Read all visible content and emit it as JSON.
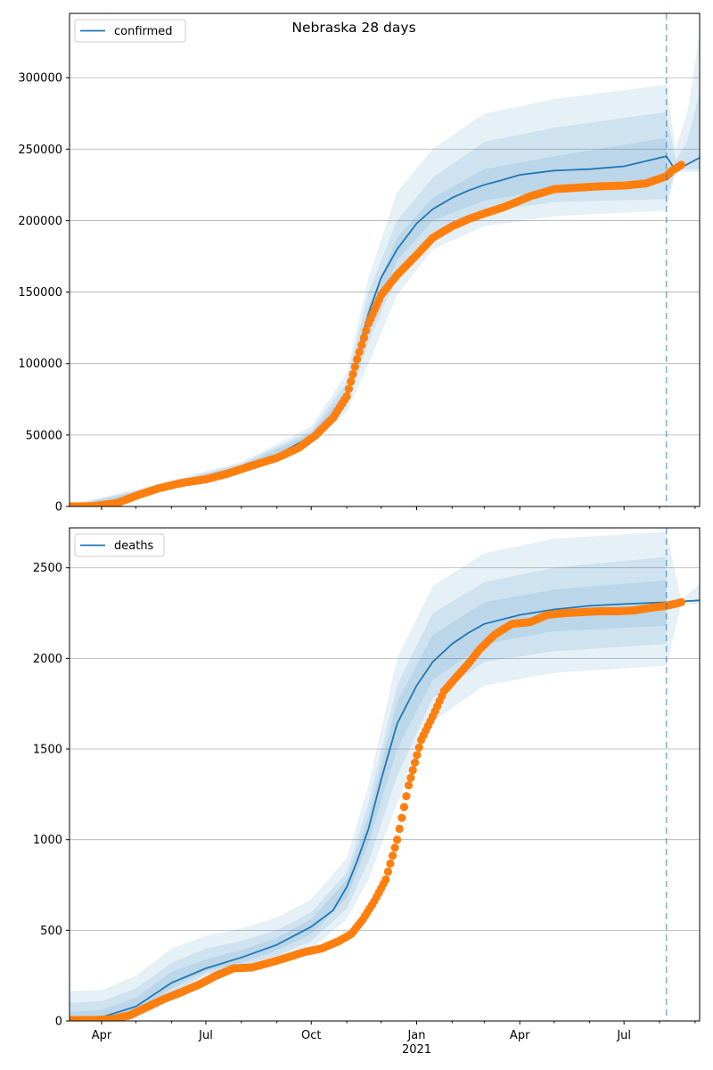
{
  "figure": {
    "title": "Nebraska 28 days"
  },
  "colors": {
    "model": "#1f77b4",
    "observed": "#ff7f0e",
    "band": "#1f77b4",
    "grid": "#b0b0b0",
    "forecast_line": "#1f77b4"
  },
  "chart_data": [
    {
      "type": "line",
      "name": "confirmed-panel",
      "legend": "confirmed",
      "legend_position": "top-left",
      "grid": "horizontal",
      "xlim": [
        "2020-03-04",
        "2021-09-05"
      ],
      "ylim": [
        0,
        345000
      ],
      "yticks": [
        0,
        50000,
        100000,
        150000,
        200000,
        250000,
        300000
      ],
      "ytick_labels": [
        "0",
        "50000",
        "100000",
        "150000",
        "200000",
        "250000",
        "300000"
      ],
      "forecast_start": "2021-08-07",
      "model": {
        "x": [
          "2020-03-04",
          "2020-04-01",
          "2020-05-01",
          "2020-06-01",
          "2020-07-01",
          "2020-08-01",
          "2020-09-01",
          "2020-10-01",
          "2020-10-20",
          "2020-11-01",
          "2020-11-10",
          "2020-11-20",
          "2020-12-01",
          "2020-12-15",
          "2021-01-01",
          "2021-01-15",
          "2021-02-01",
          "2021-02-15",
          "2021-03-01",
          "2021-03-15",
          "2021-04-01",
          "2021-05-01",
          "2021-06-01",
          "2021-07-01",
          "2021-08-07",
          "2021-08-15",
          "2021-09-05"
        ],
        "y": [
          0,
          1500,
          9000,
          17000,
          21000,
          28000,
          36000,
          49000,
          62000,
          78000,
          105000,
          135000,
          160000,
          180000,
          198000,
          208000,
          216000,
          221000,
          225000,
          228000,
          232000,
          235000,
          236000,
          238000,
          245000,
          235000,
          244000
        ]
      },
      "bands": [
        {
          "level": "outer",
          "x": [
            "2020-03-04",
            "2020-05-01",
            "2020-08-01",
            "2020-10-01",
            "2020-11-01",
            "2020-11-20",
            "2020-12-15",
            "2021-01-15",
            "2021-03-01",
            "2021-05-01",
            "2021-08-07"
          ],
          "upper": [
            1000,
            12000,
            31000,
            56000,
            93000,
            160000,
            220000,
            250000,
            275000,
            285000,
            295000
          ],
          "lower": [
            0,
            6000,
            25000,
            44000,
            66000,
            100000,
            148000,
            180000,
            196000,
            203000,
            207000
          ]
        },
        {
          "level": "middle",
          "x": [
            "2020-03-04",
            "2020-05-01",
            "2020-08-01",
            "2020-10-01",
            "2020-11-01",
            "2020-11-20",
            "2020-12-15",
            "2021-01-15",
            "2021-03-01",
            "2021-05-01",
            "2021-08-07"
          ],
          "upper": [
            700,
            11000,
            30000,
            53000,
            87000,
            150000,
            200000,
            230000,
            255000,
            265000,
            276000
          ],
          "lower": [
            0,
            7000,
            26000,
            46000,
            70000,
            115000,
            162000,
            192000,
            206000,
            213000,
            215000
          ]
        },
        {
          "level": "inner",
          "x": [
            "2020-03-04",
            "2020-05-01",
            "2020-08-01",
            "2020-10-01",
            "2020-11-01",
            "2020-11-20",
            "2020-12-15",
            "2021-01-15",
            "2021-03-01",
            "2021-05-01",
            "2021-08-07"
          ],
          "upper": [
            400,
            10000,
            29000,
            51000,
            82000,
            140000,
            188000,
            216000,
            236000,
            245000,
            258000
          ],
          "lower": [
            0,
            8000,
            27000,
            47000,
            74000,
            126000,
            172000,
            200000,
            214000,
            222000,
            228000
          ]
        }
      ],
      "forecast_bands": [
        {
          "x": [
            "2021-08-07",
            "2021-08-15",
            "2021-08-25",
            "2021-09-05"
          ],
          "upper": [
            295000,
            250000,
            275000,
            330000
          ],
          "lower": [
            207000,
            234000,
            234000,
            234000
          ]
        },
        {
          "x": [
            "2021-08-07",
            "2021-08-15",
            "2021-08-25",
            "2021-09-05"
          ],
          "upper": [
            276000,
            242000,
            255000,
            290000
          ],
          "lower": [
            215000,
            236000,
            236000,
            236000
          ]
        }
      ],
      "observed": {
        "x": [
          "2020-03-04",
          "2020-03-25",
          "2020-04-15",
          "2020-05-01",
          "2020-05-20",
          "2020-06-10",
          "2020-07-01",
          "2020-07-20",
          "2020-08-10",
          "2020-09-01",
          "2020-09-20",
          "2020-10-05",
          "2020-10-20",
          "2020-11-01",
          "2020-11-10",
          "2020-11-20",
          "2020-12-01",
          "2020-12-15",
          "2021-01-01",
          "2021-01-15",
          "2021-02-01",
          "2021-02-15",
          "2021-03-01",
          "2021-03-20",
          "2021-04-10",
          "2021-05-01",
          "2021-05-20",
          "2021-06-10",
          "2021-07-01",
          "2021-07-20",
          "2021-08-07",
          "2021-08-12",
          "2021-08-20"
        ],
        "y": [
          0,
          200,
          2500,
          7500,
          12500,
          16500,
          19000,
          23000,
          28500,
          34000,
          41000,
          50000,
          62000,
          77000,
          103000,
          128000,
          148000,
          162000,
          176000,
          188000,
          196000,
          201000,
          205000,
          210000,
          217000,
          222000,
          223000,
          224000,
          224500,
          226000,
          231000,
          235000,
          239000
        ]
      }
    },
    {
      "type": "line",
      "name": "deaths-panel",
      "legend": "deaths",
      "legend_position": "top-left",
      "grid": "horizontal",
      "xlim": [
        "2020-03-04",
        "2021-09-05"
      ],
      "ylim": [
        0,
        2720
      ],
      "yticks": [
        0,
        500,
        1000,
        1500,
        2000,
        2500
      ],
      "ytick_labels": [
        "0",
        "500",
        "1000",
        "1500",
        "2000",
        "2500"
      ],
      "xticks": [
        "2020-04-01",
        "2020-07-01",
        "2020-10-01",
        "2021-01-01",
        "2021-04-01",
        "2021-07-01"
      ],
      "xtick_labels": [
        "Apr",
        "Jul",
        "Oct",
        "Jan",
        "Apr",
        "Jul"
      ],
      "year_label": "2021",
      "forecast_start": "2021-08-07",
      "model": {
        "x": [
          "2020-03-04",
          "2020-04-01",
          "2020-05-01",
          "2020-06-01",
          "2020-07-01",
          "2020-08-01",
          "2020-09-01",
          "2020-10-01",
          "2020-10-20",
          "2020-11-01",
          "2020-11-10",
          "2020-11-20",
          "2020-12-01",
          "2020-12-15",
          "2021-01-01",
          "2021-01-15",
          "2021-02-01",
          "2021-02-15",
          "2021-03-01",
          "2021-04-01",
          "2021-05-01",
          "2021-06-01",
          "2021-07-01",
          "2021-08-07",
          "2021-09-05"
        ],
        "y": [
          0,
          20,
          80,
          210,
          290,
          350,
          420,
          520,
          610,
          740,
          880,
          1060,
          1330,
          1640,
          1850,
          1980,
          2080,
          2140,
          2190,
          2240,
          2270,
          2290,
          2300,
          2310,
          2320
        ]
      },
      "bands": [
        {
          "level": "outer",
          "x": [
            "2020-03-04",
            "2020-04-01",
            "2020-05-01",
            "2020-06-01",
            "2020-07-01",
            "2020-08-01",
            "2020-09-01",
            "2020-10-01",
            "2020-11-01",
            "2020-11-20",
            "2020-12-15",
            "2021-01-15",
            "2021-03-01",
            "2021-05-01",
            "2021-08-07"
          ],
          "upper": [
            165,
            170,
            250,
            400,
            470,
            510,
            570,
            670,
            900,
            1300,
            2000,
            2400,
            2580,
            2660,
            2700
          ],
          "lower": [
            0,
            0,
            10,
            120,
            240,
            285,
            330,
            400,
            560,
            780,
            1200,
            1650,
            1850,
            1920,
            1960
          ]
        },
        {
          "level": "middle",
          "x": [
            "2020-03-04",
            "2020-04-01",
            "2020-05-01",
            "2020-06-01",
            "2020-07-01",
            "2020-08-01",
            "2020-09-01",
            "2020-10-01",
            "2020-11-01",
            "2020-11-20",
            "2020-12-15",
            "2021-01-15",
            "2021-03-01",
            "2021-05-01",
            "2021-08-07"
          ],
          "upper": [
            100,
            110,
            180,
            320,
            400,
            440,
            500,
            600,
            820,
            1200,
            1850,
            2250,
            2420,
            2500,
            2560
          ],
          "lower": [
            0,
            0,
            30,
            150,
            260,
            305,
            360,
            440,
            620,
            880,
            1350,
            1780,
            1980,
            2040,
            2080
          ]
        },
        {
          "level": "inner",
          "x": [
            "2020-03-04",
            "2020-04-01",
            "2020-05-01",
            "2020-06-01",
            "2020-07-01",
            "2020-08-01",
            "2020-09-01",
            "2020-10-01",
            "2020-11-01",
            "2020-11-20",
            "2020-12-15",
            "2021-01-15",
            "2021-03-01",
            "2021-05-01",
            "2021-08-07"
          ],
          "upper": [
            50,
            60,
            130,
            270,
            340,
            390,
            460,
            560,
            780,
            1130,
            1760,
            2130,
            2310,
            2380,
            2430
          ],
          "lower": [
            0,
            0,
            50,
            180,
            275,
            320,
            390,
            480,
            680,
            980,
            1500,
            1880,
            2080,
            2150,
            2180
          ]
        }
      ],
      "forecast_bands": [
        {
          "x": [
            "2021-08-07",
            "2021-08-20",
            "2021-09-05"
          ],
          "upper": [
            2700,
            2320,
            2410
          ],
          "lower": [
            1960,
            2300,
            2300
          ]
        }
      ],
      "observed": {
        "x": [
          "2020-03-04",
          "2020-03-25",
          "2020-04-10",
          "2020-04-25",
          "2020-05-10",
          "2020-05-25",
          "2020-06-10",
          "2020-06-25",
          "2020-07-10",
          "2020-07-25",
          "2020-08-10",
          "2020-08-25",
          "2020-09-10",
          "2020-09-25",
          "2020-10-10",
          "2020-10-25",
          "2020-11-05",
          "2020-11-15",
          "2020-11-25",
          "2020-12-05",
          "2020-12-15",
          "2020-12-25",
          "2021-01-05",
          "2021-01-15",
          "2021-01-25",
          "2021-02-05",
          "2021-02-15",
          "2021-02-25",
          "2021-03-10",
          "2021-03-25",
          "2021-04-10",
          "2021-04-25",
          "2021-05-10",
          "2021-05-25",
          "2021-06-10",
          "2021-06-25",
          "2021-07-10",
          "2021-07-25",
          "2021-08-07",
          "2021-08-14",
          "2021-08-20"
        ],
        "y": [
          5,
          5,
          10,
          30,
          75,
          120,
          160,
          200,
          250,
          290,
          295,
          320,
          350,
          380,
          400,
          440,
          480,
          560,
          660,
          780,
          1000,
          1300,
          1550,
          1680,
          1820,
          1900,
          1970,
          2050,
          2130,
          2190,
          2200,
          2240,
          2250,
          2255,
          2260,
          2260,
          2265,
          2280,
          2290,
          2300,
          2310
        ]
      }
    }
  ]
}
